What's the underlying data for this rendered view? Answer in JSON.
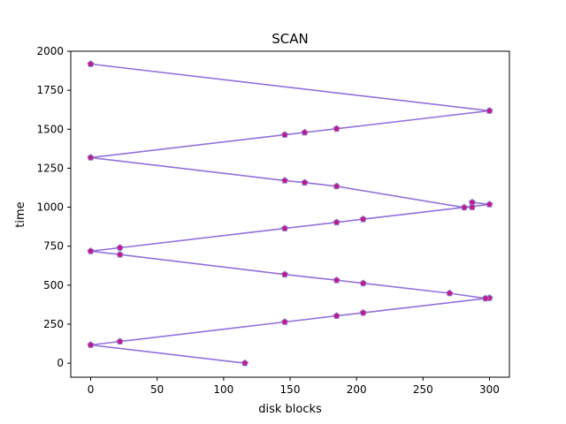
{
  "chart_data": {
    "type": "line",
    "title": "SCAN",
    "xlabel": "disk blocks",
    "ylabel": "time",
    "xlim": [
      -15,
      315
    ],
    "ylim": [
      -90,
      2000
    ],
    "xticks": [
      0,
      50,
      100,
      150,
      200,
      250,
      300
    ],
    "yticks": [
      0,
      250,
      500,
      750,
      1000,
      1250,
      1500,
      1750,
      2000
    ],
    "grid": false,
    "legend": "none",
    "line_color": "#9370DB",
    "marker_fill": "#C71585",
    "marker_edge": "#8A7FD8",
    "series": [
      {
        "points": [
          [
            116,
            0
          ],
          [
            0,
            117
          ],
          [
            22,
            139
          ],
          [
            146,
            264
          ],
          [
            185,
            303
          ],
          [
            205,
            323
          ],
          [
            300,
            418
          ],
          [
            297,
            415
          ],
          [
            270,
            448
          ],
          [
            205,
            512
          ],
          [
            185,
            532
          ],
          [
            146,
            569
          ],
          [
            22,
            696
          ],
          [
            0,
            718
          ],
          [
            22,
            740
          ],
          [
            146,
            864
          ],
          [
            185,
            903
          ],
          [
            205,
            923
          ],
          [
            300,
            1018
          ],
          [
            287,
            1031
          ],
          [
            287,
            1000
          ],
          [
            281,
            998
          ],
          [
            185,
            1134
          ],
          [
            161,
            1158
          ],
          [
            146,
            1171
          ],
          [
            0,
            1318
          ],
          [
            146,
            1464
          ],
          [
            161,
            1479
          ],
          [
            185,
            1503
          ],
          [
            300,
            1618
          ],
          [
            0,
            1918
          ]
        ]
      }
    ]
  }
}
